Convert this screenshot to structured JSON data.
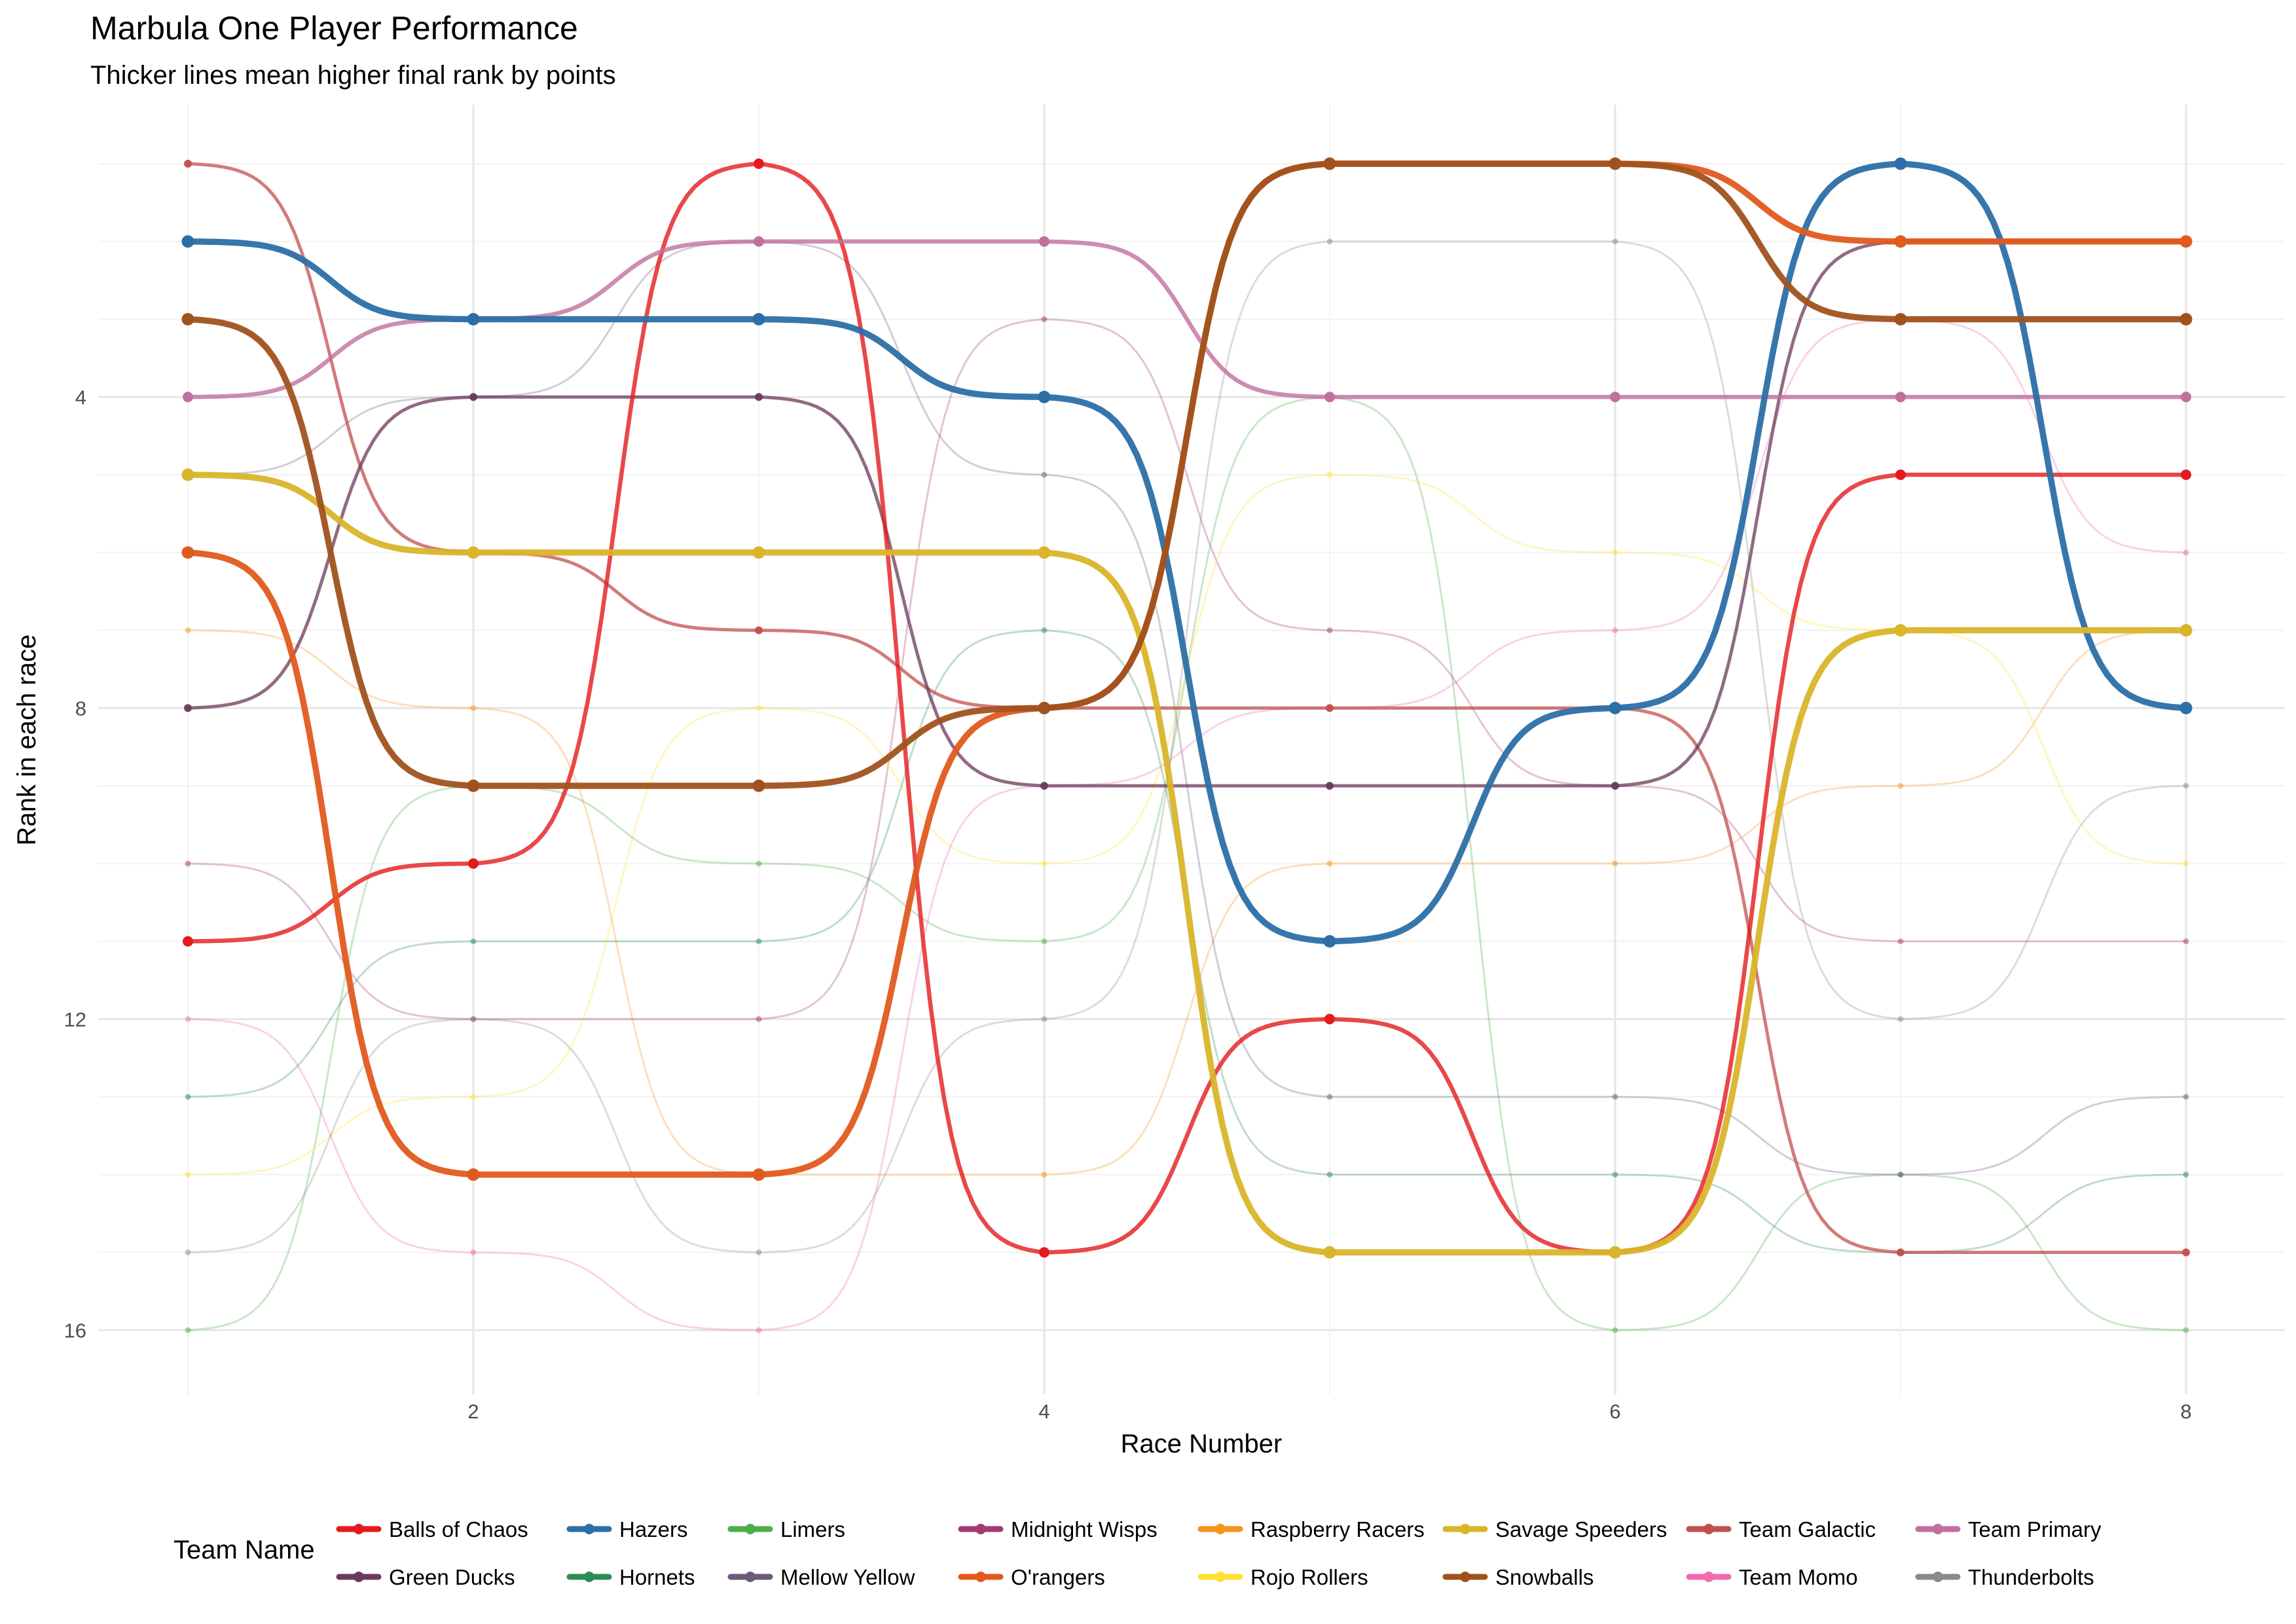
{
  "chart_data": {
    "type": "line",
    "title": "Marbula One Player Performance",
    "subtitle": "Thicker lines mean higher final rank by points",
    "xlabel": "Race Number",
    "ylabel": "Rank in each race",
    "xlim": [
      1,
      8
    ],
    "ylim": [
      17,
      0
    ],
    "x_ticks": [
      2,
      4,
      6,
      8
    ],
    "y_ticks": [
      4,
      8,
      12,
      16
    ],
    "y_reversed": true,
    "grid": true,
    "legend_title": "Team Name",
    "legend_position": "bottom",
    "series": [
      {
        "name": "Balls of Chaos",
        "color": "#E41A1C",
        "emphasis": 2,
        "x": [
          1,
          2,
          3,
          4,
          5,
          6,
          7,
          8
        ],
        "values": [
          11,
          10,
          1,
          15,
          12,
          15,
          5,
          5
        ]
      },
      {
        "name": "Hazers",
        "color": "#2C6FA6",
        "emphasis": 3,
        "x": [
          1,
          2,
          3,
          4,
          5,
          6,
          7,
          8
        ],
        "values": [
          2,
          3,
          3,
          4,
          11,
          8,
          1,
          8
        ]
      },
      {
        "name": "Limers",
        "color": "#4DAF4A",
        "emphasis": 0,
        "x": [
          1,
          2,
          3,
          4,
          5,
          6,
          7,
          8
        ],
        "values": [
          16,
          9,
          10,
          11,
          4,
          16,
          14,
          16
        ]
      },
      {
        "name": "Midnight Wisps",
        "color": "#A23B72",
        "emphasis": 0,
        "x": [
          1,
          2,
          3,
          4,
          5,
          6,
          7,
          8
        ],
        "values": [
          10,
          12,
          12,
          3,
          7,
          9,
          11,
          11
        ]
      },
      {
        "name": "Raspberry Racers",
        "color": "#F7941D",
        "emphasis": 0,
        "x": [
          1,
          2,
          3,
          4,
          5,
          6,
          7,
          8
        ],
        "values": [
          7,
          8,
          14,
          14,
          10,
          10,
          9,
          7
        ]
      },
      {
        "name": "Savage Speeders",
        "color": "#D9B52A",
        "emphasis": 3,
        "x": [
          1,
          2,
          3,
          4,
          5,
          6,
          7,
          8
        ],
        "values": [
          5,
          6,
          6,
          6,
          15,
          15,
          7,
          7
        ]
      },
      {
        "name": "Team Galactic",
        "color": "#C0504D",
        "emphasis": 1,
        "x": [
          1,
          2,
          3,
          4,
          5,
          6,
          7,
          8
        ],
        "values": [
          1,
          6,
          7,
          8,
          8,
          8,
          15,
          15
        ]
      },
      {
        "name": "Team Primary",
        "color": "#C0709E",
        "emphasis": 2,
        "x": [
          1,
          2,
          3,
          4,
          5,
          6,
          7,
          8
        ],
        "values": [
          4,
          3,
          2,
          2,
          4,
          4,
          4,
          4
        ]
      },
      {
        "name": "Green Ducks",
        "color": "#6B3A5A",
        "emphasis": 1,
        "x": [
          1,
          2,
          3,
          4,
          5,
          6,
          7,
          8
        ],
        "values": [
          8,
          4,
          4,
          9,
          9,
          9,
          2,
          2
        ]
      },
      {
        "name": "Hornets",
        "color": "#2E8B57",
        "emphasis": 0,
        "x": [
          1,
          2,
          3,
          4,
          5,
          6,
          7,
          8
        ],
        "values": [
          13,
          11,
          11,
          7,
          14,
          14,
          15,
          14
        ]
      },
      {
        "name": "Mellow Yellow",
        "color": "#6E5A7A",
        "emphasis": 0,
        "x": [
          1,
          2,
          3,
          4,
          5,
          6,
          7,
          8
        ],
        "values": [
          5,
          4,
          2,
          5,
          13,
          13,
          14,
          13
        ]
      },
      {
        "name": "O'rangers",
        "color": "#E05A1F",
        "emphasis": 3,
        "x": [
          1,
          2,
          3,
          4,
          5,
          6,
          7,
          8
        ],
        "values": [
          6,
          14,
          14,
          8,
          1,
          1,
          2,
          2
        ]
      },
      {
        "name": "Rojo Rollers",
        "color": "#FFE135",
        "emphasis": 0,
        "x": [
          1,
          2,
          3,
          4,
          5,
          6,
          7,
          8
        ],
        "values": [
          14,
          13,
          8,
          10,
          5,
          6,
          7,
          10
        ]
      },
      {
        "name": "Snowballs",
        "color": "#A0521E",
        "emphasis": 3,
        "x": [
          1,
          2,
          3,
          4,
          5,
          6,
          7,
          8
        ],
        "values": [
          3,
          9,
          9,
          8,
          1,
          1,
          3,
          3
        ]
      },
      {
        "name": "Team Momo",
        "color": "#F06BAF",
        "emphasis": 0,
        "x": [
          1,
          2,
          3,
          4,
          5,
          6,
          7,
          8
        ],
        "values": [
          12,
          15,
          16,
          9,
          8,
          7,
          3,
          6
        ]
      },
      {
        "name": "Thunderbolts",
        "color": "#8A8A8A",
        "emphasis": 0,
        "x": [
          1,
          2,
          3,
          4,
          5,
          6,
          7,
          8
        ],
        "values": [
          15,
          12,
          15,
          12,
          2,
          2,
          12,
          9
        ]
      }
    ],
    "legend": [
      [
        "Balls of Chaos",
        "Hazers",
        "Limers",
        "Midnight Wisps",
        "Raspberry Racers",
        "Savage Speeders",
        "Team Galactic",
        "Team Primary"
      ],
      [
        "Green Ducks",
        "Hornets",
        "Mellow Yellow",
        "O'rangers",
        "Rojo Rollers",
        "Snowballs",
        "Team Momo",
        "Thunderbolts"
      ]
    ]
  }
}
